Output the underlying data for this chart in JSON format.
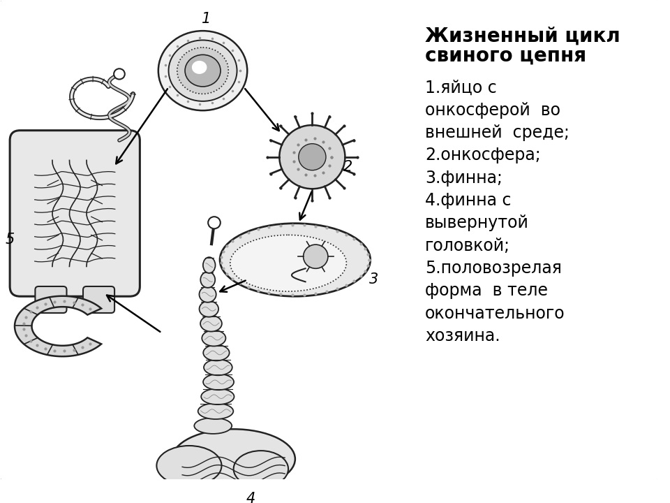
{
  "title_line1": "Жизненный цикл",
  "title_line2": "свиного цепня",
  "items": [
    "1.яйцо с",
    "онкосферой  во",
    "внешней  среде;",
    "2.онкосфера;",
    "3.финна;",
    "4.финна с",
    "вывернутой",
    "головкой;",
    "5.половозрелая",
    "форма  в теле",
    "окончательного",
    "хозяина."
  ],
  "bg_color": "#ffffff",
  "text_color": "#000000",
  "title_fontsize": 20,
  "item_fontsize": 17,
  "label_fontsize": 15,
  "figure_width": 9.6,
  "figure_height": 7.2,
  "dpi": 100,
  "border_color": "#aaaaaa",
  "draw_color": "#222222",
  "fill_light": "#e8e8e8",
  "fill_mid": "#c8c8c8",
  "fill_dark": "#999999"
}
